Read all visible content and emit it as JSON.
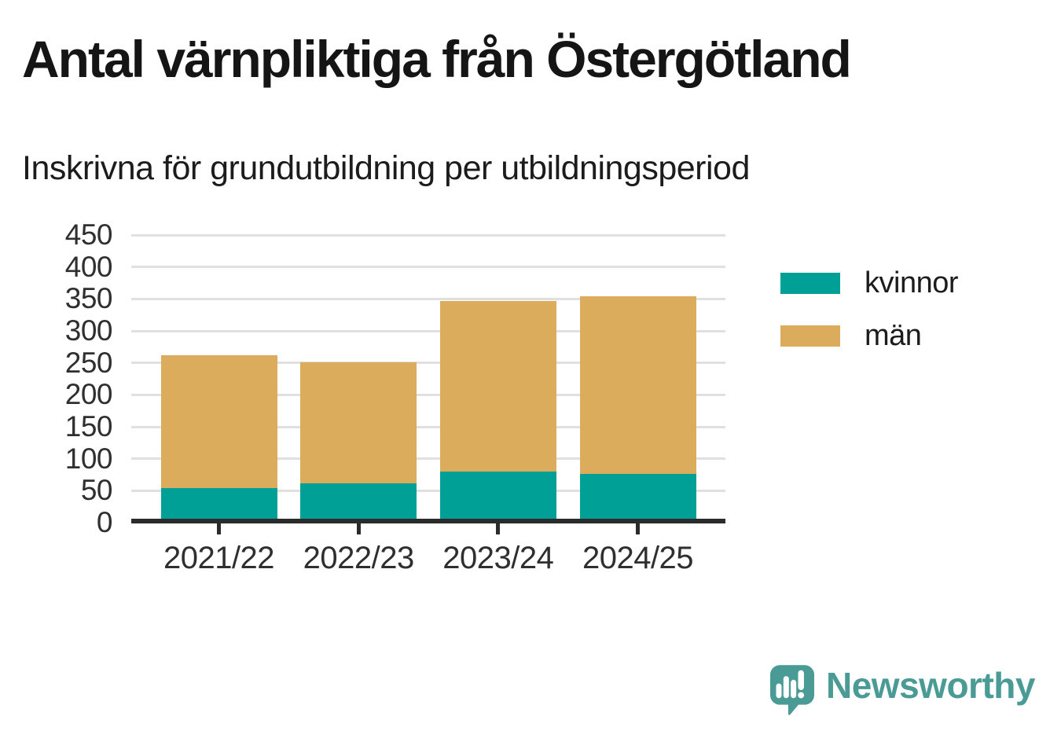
{
  "chart_data": {
    "type": "bar",
    "stacked": true,
    "title": "Antal värnpliktiga från Östergötland",
    "subtitle": "Inskrivna för grundutbildning per utbildningsperiod",
    "categories": [
      "2021/22",
      "2022/23",
      "2023/24",
      "2024/25"
    ],
    "series": [
      {
        "name": "kvinnor",
        "color": "#00A096",
        "values": [
          54,
          62,
          80,
          76
        ]
      },
      {
        "name": "män",
        "color": "#DAAC5C",
        "values": [
          208,
          189,
          267,
          278
        ]
      }
    ],
    "stack_totals": [
      262,
      251,
      347,
      354
    ],
    "ylim": [
      0,
      450
    ],
    "yticks": [
      0,
      50,
      100,
      150,
      200,
      250,
      300,
      350,
      400,
      450
    ],
    "grid": "horizontal-only",
    "legend_position": "right-of-plot"
  },
  "colors": {
    "background": "#ffffff",
    "title_text": "#151515",
    "subtitle_text": "#1c1c1c",
    "tick_text": "#2f2f2f",
    "axis_line": "#2b2b2b",
    "gridline": "#e0e0e0",
    "kvinnor": "#00A096",
    "man": "#DAAC5C",
    "logo": "#4A9B95"
  },
  "branding": {
    "logo_text": "Newsworthy",
    "logo_color": "#4A9B95",
    "logo_icon": "speech-bubble-bar-chart-exclamation"
  }
}
